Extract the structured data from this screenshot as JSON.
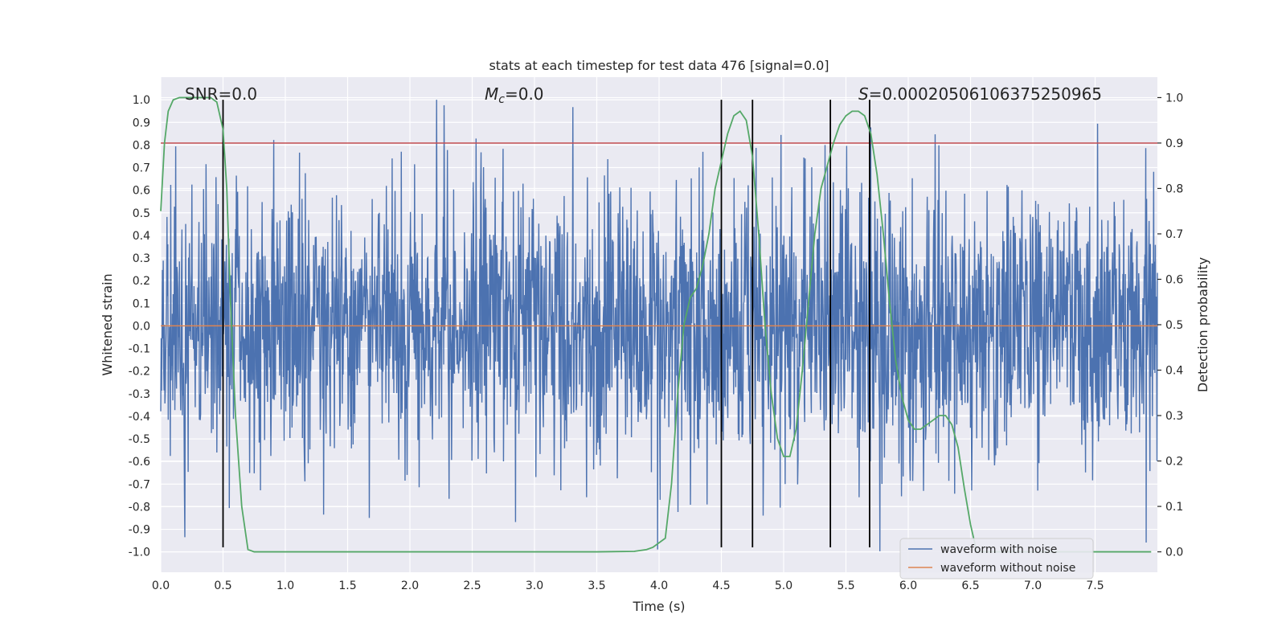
{
  "chart_data": {
    "type": "line",
    "title": "stats at each timestep for test data 476 [signal=0.0]",
    "xlabel": "Time (s)",
    "ylabel": "Whitened strain",
    "y2label": "Detection probability",
    "xlim": [
      0.0,
      8.0
    ],
    "ylim": [
      -1.09,
      1.1
    ],
    "y2lim": [
      -0.045,
      1.045
    ],
    "x_ticks": [
      "0.0",
      "0.5",
      "1.0",
      "1.5",
      "2.0",
      "2.5",
      "3.0",
      "3.5",
      "4.0",
      "4.5",
      "5.0",
      "5.5",
      "6.0",
      "6.5",
      "7.0",
      "7.5"
    ],
    "y_ticks": [
      "1.0",
      "0.9",
      "0.8",
      "0.7",
      "0.6",
      "0.5",
      "0.4",
      "0.3",
      "0.2",
      "0.1",
      "0.0",
      "-0.1",
      "-0.2",
      "-0.3",
      "-0.4",
      "-0.5",
      "-0.6",
      "-0.7",
      "-0.8",
      "-0.9",
      "-1.0"
    ],
    "y2_ticks": [
      "1.0",
      "0.9",
      "0.8",
      "0.7",
      "0.6",
      "0.5",
      "0.4",
      "0.3",
      "0.2",
      "0.1",
      "0.0"
    ],
    "grid": true,
    "legend_position": "bottom-right",
    "annotations": {
      "snr": "SNR=0.0",
      "mc_symbol": "M",
      "mc_sub": "c",
      "mc_value": "=0.0",
      "s_symbol": "S",
      "s_value": "=0.00020506106375250965"
    },
    "threshold": {
      "y2": 0.9,
      "color": "#c44e52"
    },
    "vlines": [
      0.5,
      4.5,
      4.75,
      5.375,
      5.69
    ],
    "series": [
      {
        "name": "waveform with noise",
        "color": "#4c72b0",
        "kind": "noise",
        "n_points": 2400,
        "envelope": [
          -1.0,
          1.0
        ],
        "seed": 476
      },
      {
        "name": "waveform without noise",
        "color": "#dd8452",
        "kind": "flat",
        "value": 0.0
      },
      {
        "color": "#55a868",
        "axis": "y2",
        "x": [
          0.0,
          0.03,
          0.06,
          0.1,
          0.15,
          0.2,
          0.3,
          0.4,
          0.45,
          0.5,
          0.53,
          0.56,
          0.6,
          0.65,
          0.7,
          0.75,
          1.0,
          2.0,
          3.0,
          3.5,
          3.8,
          3.9,
          3.95,
          4.05,
          4.1,
          4.15,
          4.2,
          4.25,
          4.3,
          4.35,
          4.4,
          4.45,
          4.5,
          4.55,
          4.6,
          4.65,
          4.7,
          4.75,
          4.8,
          4.85,
          4.9,
          4.95,
          5.0,
          5.05,
          5.1,
          5.15,
          5.2,
          5.25,
          5.3,
          5.35,
          5.4,
          5.45,
          5.5,
          5.55,
          5.6,
          5.65,
          5.7,
          5.75,
          5.8,
          5.85,
          5.9,
          5.95,
          6.0,
          6.05,
          6.1,
          6.15,
          6.2,
          6.25,
          6.3,
          6.35,
          6.4,
          6.45,
          6.5,
          6.55,
          6.6,
          6.7,
          7.0,
          7.5,
          7.95
        ],
        "y": [
          0.75,
          0.9,
          0.97,
          0.995,
          1.0,
          1.0,
          1.0,
          1.0,
          0.99,
          0.93,
          0.8,
          0.55,
          0.3,
          0.1,
          0.005,
          0.0,
          0.0,
          0.0,
          0.0,
          0.0,
          0.001,
          0.005,
          0.01,
          0.03,
          0.15,
          0.35,
          0.5,
          0.56,
          0.58,
          0.63,
          0.7,
          0.8,
          0.86,
          0.92,
          0.96,
          0.97,
          0.95,
          0.87,
          0.7,
          0.5,
          0.35,
          0.25,
          0.21,
          0.21,
          0.27,
          0.4,
          0.55,
          0.7,
          0.8,
          0.85,
          0.9,
          0.94,
          0.96,
          0.97,
          0.97,
          0.96,
          0.92,
          0.83,
          0.7,
          0.55,
          0.42,
          0.34,
          0.29,
          0.27,
          0.27,
          0.28,
          0.29,
          0.3,
          0.3,
          0.28,
          0.23,
          0.14,
          0.06,
          0.0,
          0.0,
          0.0,
          0.0,
          0.0,
          0.0
        ]
      }
    ]
  }
}
